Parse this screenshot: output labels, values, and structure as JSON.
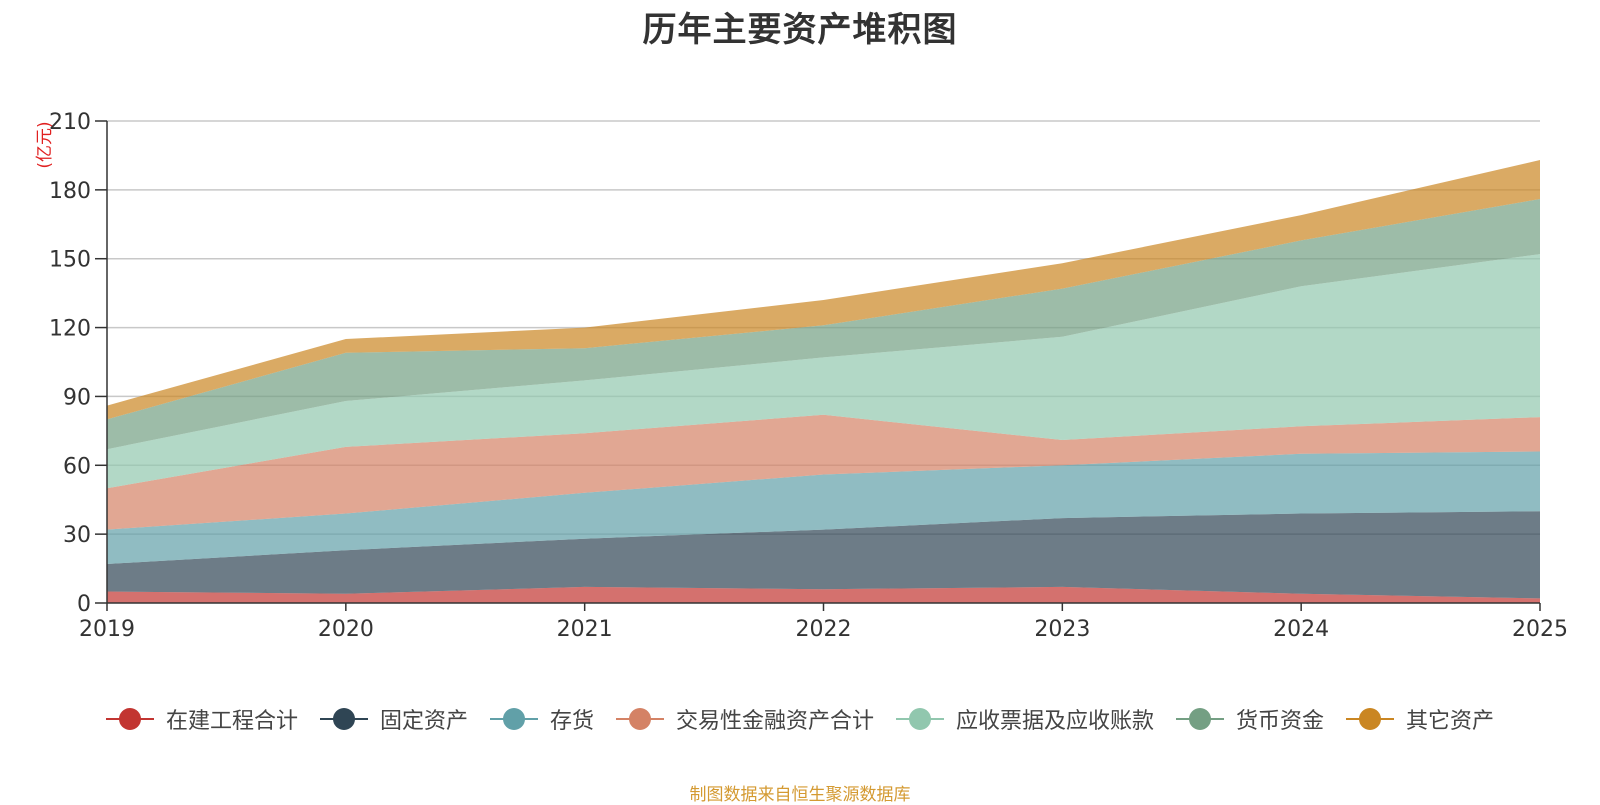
{
  "chart_data": {
    "type": "area",
    "stacked": true,
    "title": "历年主要资产堆积图",
    "ylabel": "(亿元)",
    "xlabel": "",
    "ylim": [
      0,
      210
    ],
    "yticks": [
      0,
      30,
      60,
      90,
      120,
      150,
      180,
      210
    ],
    "x": [
      "2019",
      "2020",
      "2021",
      "2022",
      "2023",
      "2024",
      "2025"
    ],
    "grid": true,
    "legend_position": "bottom",
    "series": [
      {
        "name": "在建工程合计",
        "color": "#c23531",
        "values": [
          5,
          4,
          7,
          6,
          7,
          4,
          2
        ]
      },
      {
        "name": "固定资产",
        "color": "#2f4554",
        "values": [
          12,
          19,
          21,
          26,
          30,
          35,
          38
        ]
      },
      {
        "name": "存货",
        "color": "#61a0a8",
        "values": [
          15,
          16,
          20,
          24,
          23,
          26,
          26
        ]
      },
      {
        "name": "交易性金融资产合计",
        "color": "#d48265",
        "values": [
          18,
          29,
          26,
          26,
          11,
          12,
          15
        ]
      },
      {
        "name": "应收票据及应收账款",
        "color": "#91c7ae",
        "values": [
          17,
          20,
          23,
          25,
          45,
          61,
          71
        ]
      },
      {
        "name": "货币资金",
        "color": "#749f83",
        "values": [
          13,
          21,
          14,
          14,
          21,
          20,
          24
        ]
      },
      {
        "name": "其它资产",
        "color": "#ca8622",
        "values": [
          6,
          6,
          9,
          11,
          11,
          11,
          17
        ]
      }
    ],
    "source_note": "制图数据来自恒生聚源数据库"
  }
}
